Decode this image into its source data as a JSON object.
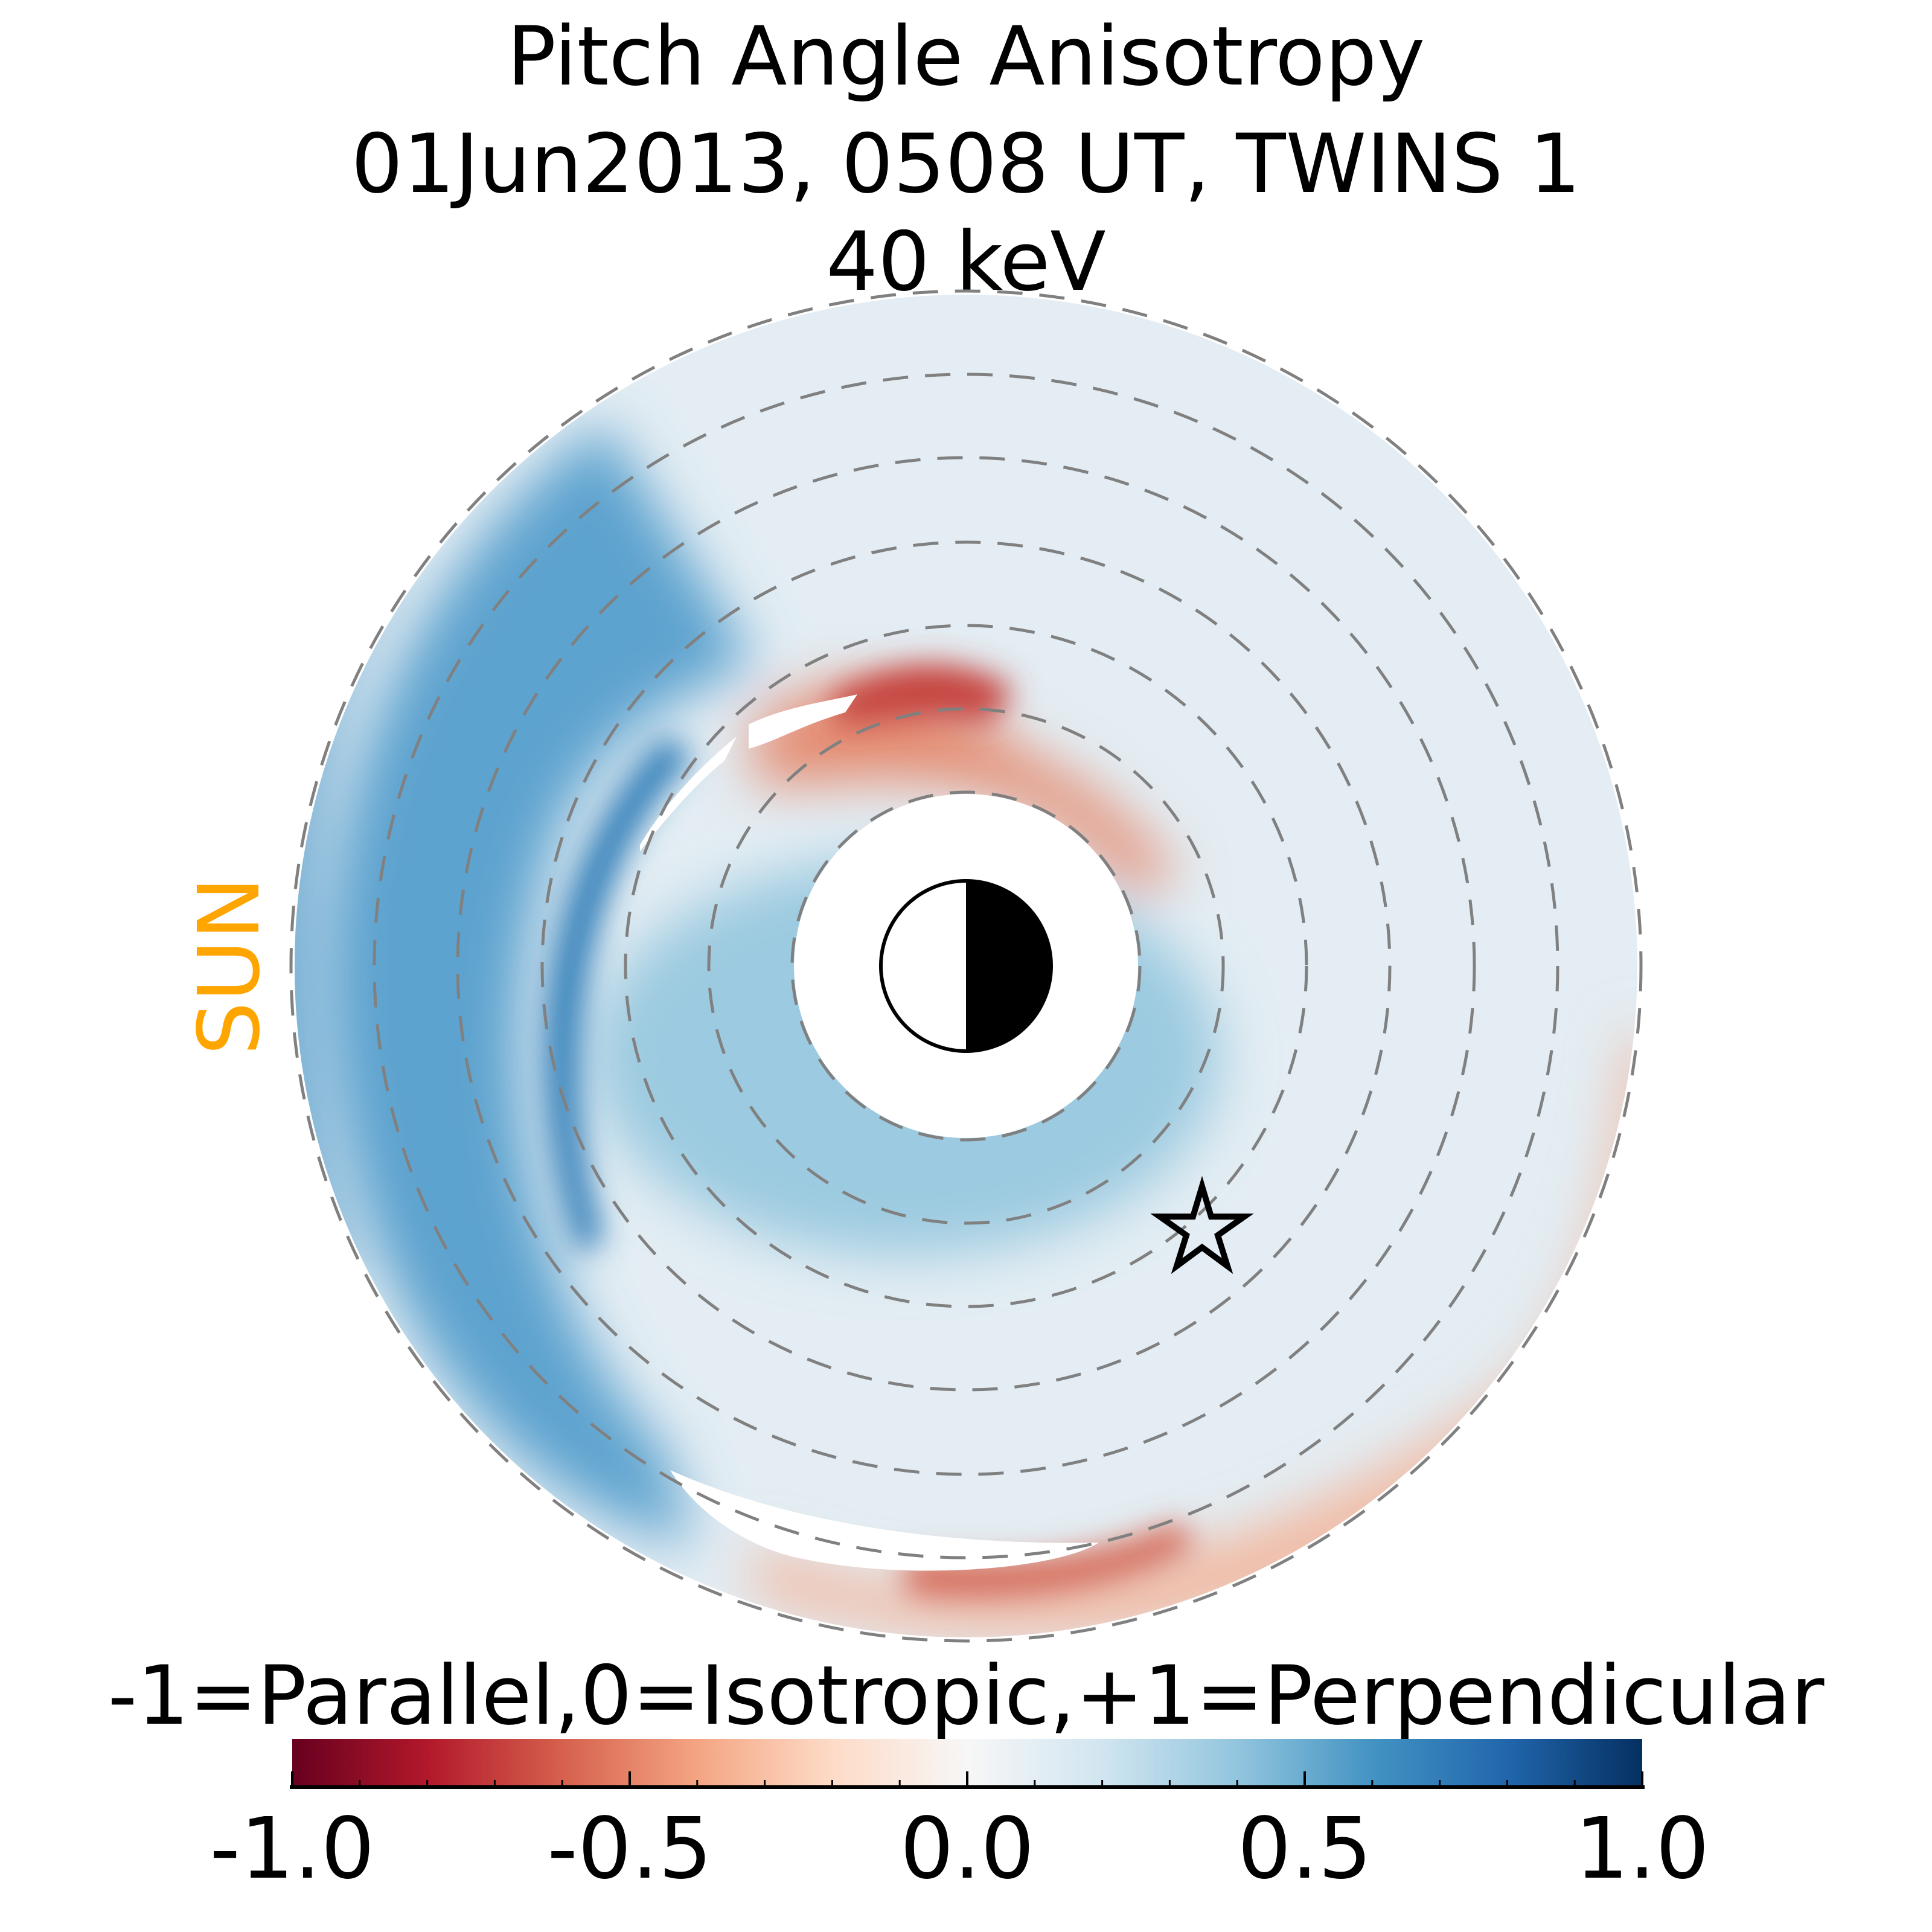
{
  "chart_data": {
    "type": "heatmap",
    "projection": "polar equatorial map",
    "title_lines": [
      "Pitch Angle Anisotropy",
      "01Jun2013, 0508 UT,  TWINS 1",
      "40 keV"
    ],
    "sun_label": "SUN",
    "sun_label_color": "#FFA500",
    "colorbar": {
      "label": "-1=Parallel,0=Isotropic,+1=Perpendicular",
      "range": [
        -1.0,
        1.0
      ],
      "colormap": "RdBu",
      "major_ticks": [
        -1.0,
        -0.5,
        0.0,
        0.5,
        1.0
      ],
      "tick_labels": [
        "-1.0",
        "-0.5",
        "0.0",
        "0.5",
        "1.0"
      ],
      "minor_tick_step": 0.1,
      "colors": [
        "#67001f",
        "#b2182b",
        "#d6604d",
        "#f4a582",
        "#fddbc7",
        "#f7f7f7",
        "#d1e5f0",
        "#92c5de",
        "#4393c3",
        "#2166ac",
        "#053061"
      ]
    },
    "dashed_circle_count": 7,
    "markers": [
      "earth-day-night-symbol",
      "star-spacecraft-position"
    ],
    "regions": [
      {
        "location": "dusk/sun-side outer ring",
        "value_approx": 0.5
      },
      {
        "location": "inner ring around earth (night side)",
        "value_approx": 0.35
      },
      {
        "location": "north arc near earth",
        "value_approx": -0.5
      },
      {
        "location": "south outer arc",
        "value_approx": -0.4
      },
      {
        "location": "background",
        "value_approx": 0.1
      }
    ]
  }
}
